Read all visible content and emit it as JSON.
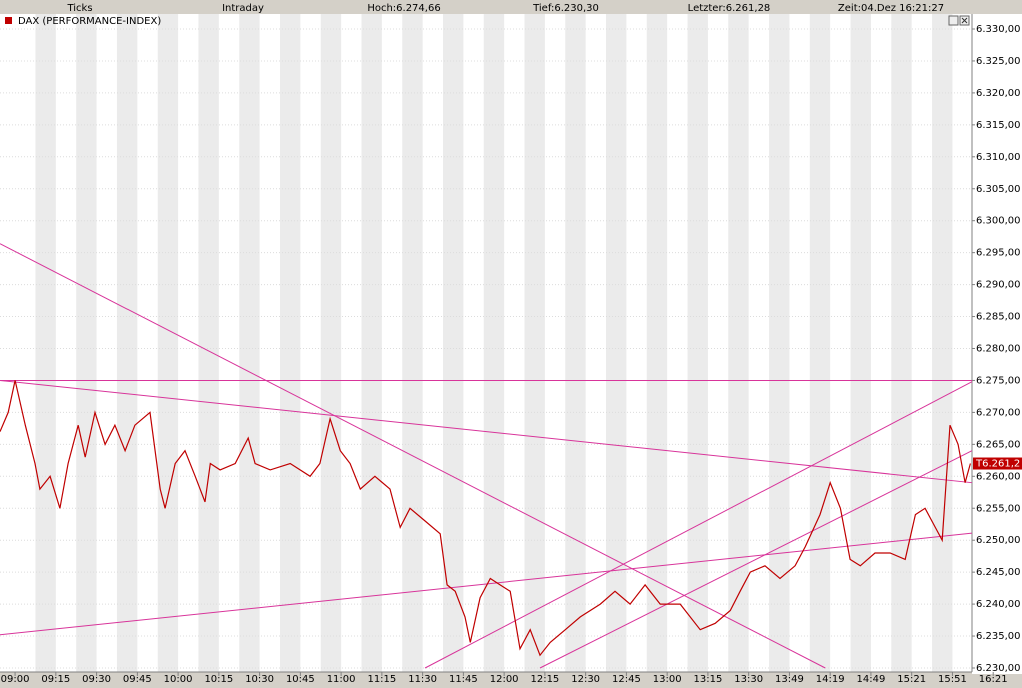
{
  "header": [
    "Ticks",
    "Intraday",
    "Hoch:6.274,66",
    "Tief:6.230,30",
    "Letzter:6.261,28",
    "Zeit:04.Dez 16:21:27"
  ],
  "chart_data": {
    "type": "line",
    "legend": "DAX (PERFORMANCE-INDEX)",
    "last_label": "T6.261,2",
    "x": [
      -0.37,
      -0.17,
      0,
      0.25,
      0.49,
      0.61,
      0.86,
      1.1,
      1.3,
      1.55,
      1.72,
      1.96,
      2.21,
      2.45,
      2.7,
      2.94,
      3.31,
      3.56,
      3.68,
      3.93,
      4.17,
      4.42,
      4.66,
      4.79,
      5.03,
      5.4,
      5.72,
      5.89,
      6.26,
      6.75,
      7.24,
      7.48,
      7.73,
      7.98,
      8.22,
      8.47,
      8.83,
      9.2,
      9.45,
      9.69,
      10.06,
      10.43,
      10.6,
      10.8,
      11.04,
      11.17,
      11.41,
      11.66,
      11.9,
      12.15,
      12.39,
      12.64,
      12.88,
      13.13,
      13.5,
      13.87,
      14.36,
      14.72,
      15.09,
      15.46,
      15.83,
      16.32,
      16.81,
      17.18,
      17.55,
      17.79,
      18.04,
      18.4,
      18.77,
      19.14,
      19.39,
      19.75,
      20.0,
      20.25,
      20.49,
      20.74,
      21.1,
      21.47,
      21.84,
      22.09,
      22.33,
      22.58,
      22.75,
      22.94,
      23.14,
      23.31,
      23.44
    ],
    "series": [
      {
        "name": "DAX (PERFORMANCE-INDEX)",
        "color": "#c00000",
        "values": [
          6267,
          6270,
          6275,
          6268,
          6262,
          6258,
          6260,
          6255,
          6262,
          6268,
          6263,
          6270,
          6265,
          6268,
          6264,
          6268,
          6270,
          6258,
          6255,
          6262,
          6264,
          6260,
          6256,
          6262,
          6261,
          6262,
          6266,
          6262,
          6261,
          6262,
          6260,
          6262,
          6269,
          6264,
          6262,
          6258,
          6260,
          6258,
          6252,
          6255,
          6253,
          6251,
          6243,
          6242,
          6238,
          6234,
          6241,
          6244,
          6243,
          6242,
          6233,
          6236,
          6232,
          6234,
          6236,
          6238,
          6240,
          6242,
          6240,
          6243,
          6240,
          6240,
          6236,
          6237,
          6239,
          6242,
          6245,
          6246,
          6244,
          6246,
          6249,
          6254,
          6259,
          6255,
          6247,
          6246,
          6248,
          6248,
          6247,
          6254,
          6255,
          6252,
          6250,
          6268,
          6265,
          6259,
          6262
        ]
      }
    ],
    "trendlines": {
      "color": "#d8349a",
      "lines": [
        {
          "x": [
            -0.37,
            23.48
          ],
          "values": [
            6275,
            6275
          ]
        },
        {
          "x": [
            -0.37,
            19.88
          ],
          "values": [
            6296.4,
            6230
          ]
        },
        {
          "x": [
            -0.37,
            23.48
          ],
          "values": [
            6275,
            6259
          ]
        },
        {
          "x": [
            -0.37,
            23.48
          ],
          "values": [
            6235.2,
            6251.1
          ]
        },
        {
          "x": [
            10.06,
            23.48
          ],
          "values": [
            6230,
            6274.8
          ]
        },
        {
          "x": [
            12.88,
            23.48
          ],
          "values": [
            6230,
            6264
          ]
        }
      ]
    },
    "xlim": [
      -0.37,
      23.48
    ],
    "xticks": [
      {
        "value": 0,
        "label": "09:00"
      },
      {
        "value": 1,
        "label": "09:15"
      },
      {
        "value": 2,
        "label": "09:30"
      },
      {
        "value": 3,
        "label": "09:45"
      },
      {
        "value": 4,
        "label": "10:00"
      },
      {
        "value": 5,
        "label": "10:15"
      },
      {
        "value": 6,
        "label": "10:30"
      },
      {
        "value": 7,
        "label": "10:45"
      },
      {
        "value": 8,
        "label": "11:00"
      },
      {
        "value": 9,
        "label": "11:15"
      },
      {
        "value": 10,
        "label": "11:30"
      },
      {
        "value": 11,
        "label": "11:45"
      },
      {
        "value": 12,
        "label": "12:00"
      },
      {
        "value": 13,
        "label": "12:15"
      },
      {
        "value": 14,
        "label": "12:30"
      },
      {
        "value": 15,
        "label": "12:45"
      },
      {
        "value": 16,
        "label": "13:00"
      },
      {
        "value": 17,
        "label": "13:15"
      },
      {
        "value": 18,
        "label": "13:30"
      },
      {
        "value": 19,
        "label": "13:49"
      },
      {
        "value": 20,
        "label": "14:19"
      },
      {
        "value": 21,
        "label": "14:49"
      },
      {
        "value": 22,
        "label": "15:21"
      },
      {
        "value": 23,
        "label": "15:51"
      },
      {
        "value": 24,
        "label": "16:21"
      }
    ],
    "ylim": [
      6230,
      6330
    ],
    "yticks": [
      {
        "value": 6330,
        "label": "6.330,00"
      },
      {
        "value": 6325,
        "label": "6.325,00"
      },
      {
        "value": 6320,
        "label": "6.320,00"
      },
      {
        "value": 6315,
        "label": "6.315,00"
      },
      {
        "value": 6310,
        "label": "6.310,00"
      },
      {
        "value": 6305,
        "label": "6.305,00"
      },
      {
        "value": 6300,
        "label": "6.300,00"
      },
      {
        "value": 6295,
        "label": "6.295,00"
      },
      {
        "value": 6290,
        "label": "6.290,00"
      },
      {
        "value": 6285,
        "label": "6.285,00"
      },
      {
        "value": 6280,
        "label": "6.280,00"
      },
      {
        "value": 6275,
        "label": "6.275,00"
      },
      {
        "value": 6270,
        "label": "6.270,00"
      },
      {
        "value": 6265,
        "label": "6.265,00"
      },
      {
        "value": 6260,
        "label": "6.260,00"
      },
      {
        "value": 6255,
        "label": "6.255,00"
      },
      {
        "value": 6250,
        "label": "6.250,00"
      },
      {
        "value": 6245,
        "label": "6.245,00"
      },
      {
        "value": 6240,
        "label": "6.240,00"
      },
      {
        "value": 6235,
        "label": "6.235,00"
      },
      {
        "value": 6230,
        "label": "6.230,00"
      }
    ],
    "grid": true
  }
}
